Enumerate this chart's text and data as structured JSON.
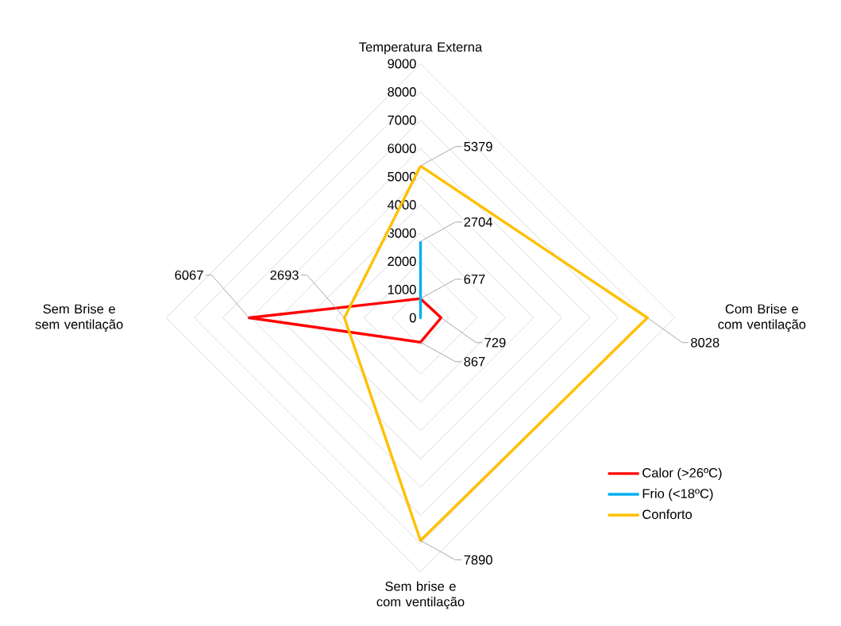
{
  "chart_data": {
    "type": "radar",
    "categories": [
      "Temperatura Externa",
      "Com Brise e com ventilação",
      "Sem brise e com ventilação",
      "Sem Brise e sem ventilação"
    ],
    "series": [
      {
        "name": "Calor (>26ºC)",
        "color": "#ff0000",
        "values": [
          677,
          729,
          867,
          6067
        ],
        "value_labels": [
          "677",
          "729",
          "867",
          "6067"
        ]
      },
      {
        "name": "Frio (<18ºC)",
        "color": "#00b0f0",
        "values": [
          2704,
          0,
          0,
          0
        ],
        "value_labels": [
          "2704",
          null,
          null,
          null
        ]
      },
      {
        "name": "Conforto",
        "color": "#ffc000",
        "values": [
          5379,
          8028,
          7890,
          2693
        ],
        "value_labels": [
          "5379",
          "8028",
          "7890",
          "2693"
        ]
      }
    ],
    "ylim": [
      0,
      9000
    ],
    "yticks": [
      0,
      1000,
      2000,
      3000,
      4000,
      5000,
      6000,
      7000,
      8000,
      9000
    ],
    "grid": true,
    "legend": "bottom right"
  }
}
